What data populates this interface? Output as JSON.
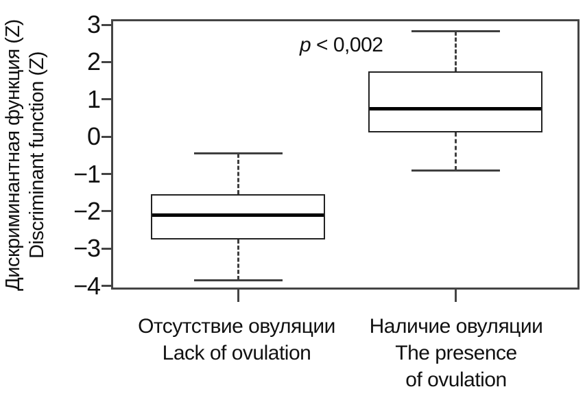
{
  "chart": {
    "ylabel_ru": "Дискриминантная функция (Z)",
    "ylabel_en": "Discriminant function (Z)",
    "annotation": {
      "italic": "p",
      "text": " < 0,002"
    },
    "categories": [
      {
        "lines": [
          "Отсутствие овуляции",
          "Lack of ovulation"
        ]
      },
      {
        "lines": [
          "Наличие овуляции",
          "The presence",
          "of ovulation"
        ]
      }
    ]
  },
  "chart_data": {
    "type": "boxplot",
    "title": "",
    "ylabel": "Дискриминантная функция (Z) / Discriminant function (Z)",
    "xlabel": "",
    "annotation": "p < 0,002",
    "legend": "none",
    "grid": false,
    "yticks": [
      3,
      2,
      1,
      0,
      -1,
      -2,
      -3,
      -4
    ],
    "ylim": [
      -4.1,
      3.15
    ],
    "categories": [
      "Отсутствие овуляции / Lack of ovulation",
      "Наличие овуляции / The presence of ovulation"
    ],
    "boxes": [
      {
        "whisker_low": -3.85,
        "q1": -2.75,
        "median": -2.1,
        "q3": -1.55,
        "whisker_high": -0.45
      },
      {
        "whisker_low": -0.9,
        "q1": 0.12,
        "median": 0.74,
        "q3": 1.75,
        "whisker_high": 2.82
      }
    ],
    "colors": {
      "line": "#3f3f3f",
      "median": "#000000",
      "frame": "#444444",
      "text": "#111111",
      "background": "#ffffff"
    }
  }
}
